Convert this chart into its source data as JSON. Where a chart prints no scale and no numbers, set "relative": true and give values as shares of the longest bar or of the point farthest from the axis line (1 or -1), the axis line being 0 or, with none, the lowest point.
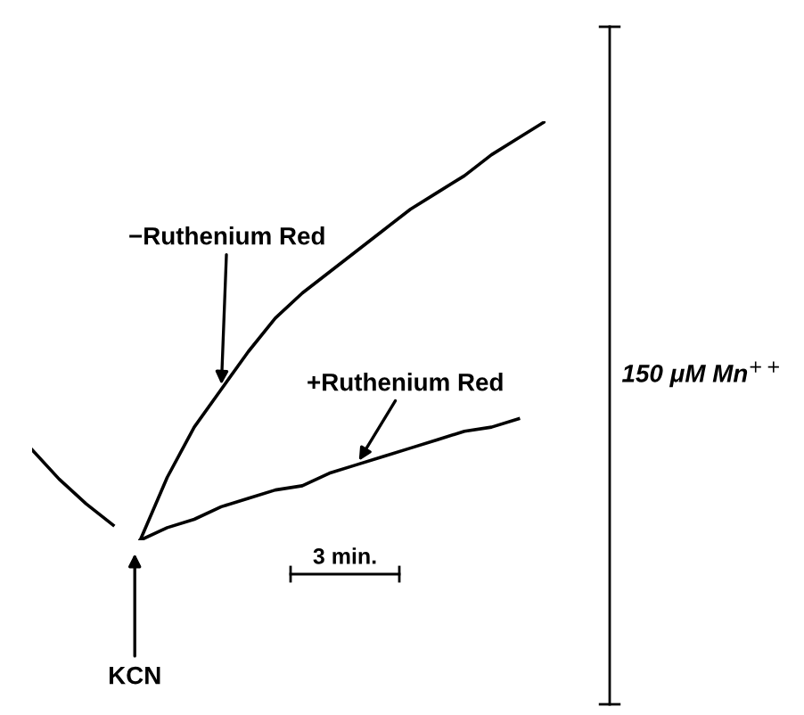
{
  "chart_data": {
    "type": "line",
    "relative": true,
    "categories": [
      null,
      null,
      null,
      null,
      null,
      null,
      null,
      null,
      null,
      null,
      null,
      null,
      null,
      null,
      null,
      null,
      null,
      null,
      null,
      null
    ],
    "series": [
      {
        "color": "#000000",
        "values": [
          0.216,
          0.146,
          0.087,
          0.036,
          null,
          null,
          null,
          null,
          null,
          null,
          null,
          null,
          null,
          null,
          null,
          null,
          null,
          null,
          null,
          null
        ]
      },
      {
        "name": "−Ruthenium Red",
        "color": "#000000",
        "values": [
          null,
          null,
          null,
          null,
          0,
          0.15,
          0.27,
          0.36,
          0.45,
          0.53,
          0.59,
          0.64,
          0.69,
          0.74,
          0.79,
          0.83,
          0.87,
          0.92,
          0.96,
          1
        ]
      },
      {
        "name": "+Ruthenium Red",
        "color": "#000000",
        "values": [
          null,
          null,
          null,
          null,
          0,
          0.03,
          0.05,
          0.08,
          0.1,
          0.12,
          0.13,
          0.16,
          0.18,
          0.2,
          0.22,
          0.24,
          0.26,
          0.27,
          0.29,
          null
        ]
      }
    ],
    "annotations": [
      "KCN",
      "3 min.",
      "150 μM Mn$^{++}$"
    ],
    "legend": false,
    "marker": "none",
    "line_style": "solid"
  }
}
